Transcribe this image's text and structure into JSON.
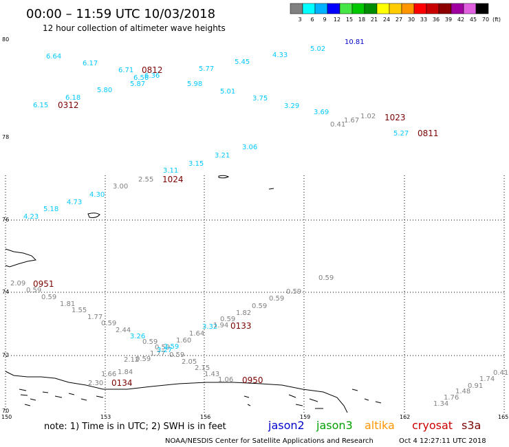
{
  "header": {
    "title": "00:00 – 11:59 UTC 10/03/2018",
    "subtitle": "12 hour collection of altimeter wave heights"
  },
  "legend": {
    "unit": "(ft)",
    "bins": [
      {
        "label": "3",
        "color": "#808080"
      },
      {
        "label": "6",
        "color": "#00ffff"
      },
      {
        "label": "9",
        "color": "#00b2ff"
      },
      {
        "label": "12",
        "color": "#0000ff"
      },
      {
        "label": "15",
        "color": "#46e646"
      },
      {
        "label": "18",
        "color": "#00c800"
      },
      {
        "label": "21",
        "color": "#008c00"
      },
      {
        "label": "24",
        "color": "#ffff00"
      },
      {
        "label": "27",
        "color": "#ffcc00"
      },
      {
        "label": "30",
        "color": "#ff9600"
      },
      {
        "label": "33",
        "color": "#ff0000"
      },
      {
        "label": "36",
        "color": "#c80000"
      },
      {
        "label": "39",
        "color": "#8c0000"
      },
      {
        "label": "42",
        "color": "#a000a0"
      },
      {
        "label": "45",
        "color": "#e060e0"
      },
      {
        "label": "70",
        "color": "#000000"
      }
    ]
  },
  "axes": {
    "lat_labels": [
      "80",
      "78",
      "76",
      "74",
      "72",
      "70"
    ],
    "lon_labels": [
      "150",
      "153",
      "156",
      "159",
      "162",
      "165"
    ]
  },
  "colors": {
    "cyan": "#00c8ff",
    "gray": "#808080",
    "blue": "#0000cc",
    "dark_red": "#7a0000",
    "orange": "#e08a00"
  },
  "observations": [
    {
      "v": "6.64",
      "c": "cyan"
    },
    {
      "v": "6.17",
      "c": "cyan"
    },
    {
      "v": "6.71",
      "c": "cyan"
    },
    {
      "v": "6.56",
      "c": "cyan"
    },
    {
      "v": "6.36",
      "c": "cyan"
    },
    {
      "v": "5.77",
      "c": "cyan"
    },
    {
      "v": "5.45",
      "c": "cyan"
    },
    {
      "v": "4.33",
      "c": "cyan"
    },
    {
      "v": "5.02",
      "c": "cyan"
    },
    {
      "v": "10.81",
      "c": "blue"
    },
    {
      "v": "6.18",
      "c": "cyan"
    },
    {
      "v": "5.80",
      "c": "cyan"
    },
    {
      "v": "5.87",
      "c": "cyan"
    },
    {
      "v": "5.98",
      "c": "cyan"
    },
    {
      "v": "5.01",
      "c": "cyan"
    },
    {
      "v": "3.75",
      "c": "cyan"
    },
    {
      "v": "3.29",
      "c": "cyan"
    },
    {
      "v": "3.69",
      "c": "cyan"
    },
    {
      "v": "6.15",
      "c": "cyan"
    },
    {
      "v": "0.41",
      "c": "gray"
    },
    {
      "v": "1.67",
      "c": "gray"
    },
    {
      "v": "1.02",
      "c": "gray"
    },
    {
      "v": "5.27",
      "c": "cyan"
    },
    {
      "v": "3.06",
      "c": "cyan"
    },
    {
      "v": "3.21",
      "c": "cyan"
    },
    {
      "v": "3.15",
      "c": "cyan"
    },
    {
      "v": "3.11",
      "c": "cyan"
    },
    {
      "v": "2.55",
      "c": "gray"
    },
    {
      "v": "3.00",
      "c": "gray"
    },
    {
      "v": "4.30",
      "c": "cyan"
    },
    {
      "v": "4.73",
      "c": "cyan"
    },
    {
      "v": "5.18",
      "c": "cyan"
    },
    {
      "v": "4.23",
      "c": "cyan"
    },
    {
      "v": "2.09",
      "c": "gray"
    },
    {
      "v": "0.59",
      "c": "gray"
    },
    {
      "v": "0.59",
      "c": "gray"
    },
    {
      "v": "1.81",
      "c": "gray"
    },
    {
      "v": "1.55",
      "c": "gray"
    },
    {
      "v": "1.77",
      "c": "gray"
    },
    {
      "v": "0.59",
      "c": "gray"
    },
    {
      "v": "2.44",
      "c": "gray"
    },
    {
      "v": "3.26",
      "c": "cyan"
    },
    {
      "v": "0.59",
      "c": "gray"
    },
    {
      "v": "0.59",
      "c": "gray"
    },
    {
      "v": "3.59",
      "c": "cyan"
    },
    {
      "v": "1.77",
      "c": "gray"
    },
    {
      "v": "3.27",
      "c": "cyan"
    },
    {
      "v": "0.59",
      "c": "gray"
    },
    {
      "v": "1.60",
      "c": "gray"
    },
    {
      "v": "1.64",
      "c": "gray"
    },
    {
      "v": "3.32",
      "c": "cyan"
    },
    {
      "v": "1.94",
      "c": "gray"
    },
    {
      "v": "0.59",
      "c": "gray"
    },
    {
      "v": "1.82",
      "c": "gray"
    },
    {
      "v": "0.59",
      "c": "gray"
    },
    {
      "v": "0.59",
      "c": "gray"
    },
    {
      "v": "0.59",
      "c": "gray"
    },
    {
      "v": "0.59",
      "c": "gray"
    },
    {
      "v": "2.12",
      "c": "gray"
    },
    {
      "v": "0.59",
      "c": "gray"
    },
    {
      "v": "1.84",
      "c": "gray"
    },
    {
      "v": "1.66",
      "c": "gray"
    },
    {
      "v": "2.30",
      "c": "gray"
    },
    {
      "v": "2.05",
      "c": "gray"
    },
    {
      "v": "2.15",
      "c": "gray"
    },
    {
      "v": "1.43",
      "c": "gray"
    },
    {
      "v": "1.06",
      "c": "gray"
    },
    {
      "v": "0.41",
      "c": "gray"
    },
    {
      "v": "1.74",
      "c": "gray"
    },
    {
      "v": "0.91",
      "c": "gray"
    },
    {
      "v": "1.48",
      "c": "gray"
    },
    {
      "v": "1.76",
      "c": "gray"
    },
    {
      "v": "1.34",
      "c": "gray"
    }
  ],
  "passes": [
    {
      "v": "0812",
      "c": "dark_red"
    },
    {
      "v": "0312",
      "c": "dark_red"
    },
    {
      "v": "1023",
      "c": "orange"
    },
    {
      "v": "0811",
      "c": "dark_red"
    },
    {
      "v": "1024",
      "c": "orange"
    },
    {
      "v": "0951",
      "c": "dark_red"
    },
    {
      "v": "0133",
      "c": "dark_red"
    },
    {
      "v": "0134",
      "c": "dark_red"
    },
    {
      "v": "0950",
      "c": "dark_red"
    }
  ],
  "note": "note:  1) Time is in UTC;  2) SWH is in feet",
  "satellites": [
    {
      "name": "jason2",
      "color": "#0000cc"
    },
    {
      "name": "jason3",
      "color": "#00a000"
    },
    {
      "name": "altika",
      "color": "#ff9600"
    },
    {
      "name": "cryosat",
      "color": "#cc0000"
    },
    {
      "name": "s3a",
      "color": "#7a0000"
    }
  ],
  "footer": {
    "credit": "NOAA/NESDIS Center for Satellite Applications and Research",
    "timestamp": "Oct  4 12:27:11 UTC 2018"
  }
}
